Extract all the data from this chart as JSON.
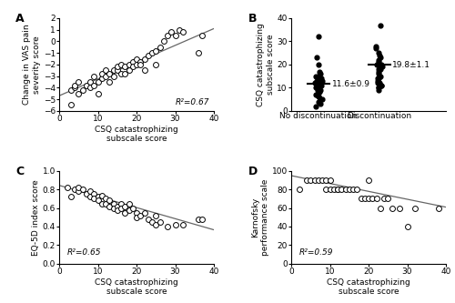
{
  "panel_A": {
    "x": [
      3,
      3,
      4,
      4,
      5,
      5,
      6,
      7,
      8,
      8,
      9,
      9,
      10,
      10,
      11,
      11,
      12,
      12,
      13,
      13,
      14,
      14,
      15,
      15,
      16,
      16,
      17,
      17,
      18,
      18,
      19,
      19,
      20,
      20,
      21,
      21,
      22,
      22,
      23,
      24,
      25,
      25,
      26,
      27,
      28,
      29,
      30,
      31,
      32,
      36,
      37
    ],
    "y": [
      -5.5,
      -4.2,
      -4.0,
      -3.8,
      -4.5,
      -3.5,
      -4.2,
      -3.8,
      -4.0,
      -3.5,
      -3.8,
      -3.0,
      -3.5,
      -4.5,
      -3.2,
      -2.8,
      -3.0,
      -2.5,
      -2.8,
      -3.5,
      -2.5,
      -3.0,
      -2.5,
      -2.2,
      -2.8,
      -2.0,
      -2.2,
      -2.8,
      -2.0,
      -2.5,
      -1.8,
      -2.2,
      -2.0,
      -1.5,
      -1.8,
      -2.0,
      -1.5,
      -2.5,
      -1.2,
      -1.0,
      -0.8,
      -2.0,
      -0.5,
      0.0,
      0.5,
      0.8,
      0.5,
      1.0,
      0.8,
      -1.0,
      0.5
    ],
    "xlabel": "CSQ catastrophizing\nsubscale score",
    "ylabel": "Change in VAS pain\nseverity score",
    "r2": "R²=0.67",
    "xlim": [
      0,
      40
    ],
    "ylim": [
      -6,
      2
    ],
    "yticks": [
      -6,
      -5,
      -4,
      -3,
      -2,
      -1,
      0,
      1,
      2
    ],
    "xticks": [
      0,
      10,
      20,
      30,
      40
    ],
    "slope": 0.145,
    "intercept": -4.7,
    "label": "A"
  },
  "panel_B": {
    "no_disc": [
      2,
      3,
      4,
      5,
      5,
      6,
      6,
      7,
      7,
      8,
      8,
      9,
      9,
      10,
      10,
      11,
      11,
      11,
      12,
      12,
      12,
      13,
      13,
      14,
      14,
      15,
      15,
      16,
      17,
      20,
      23,
      32
    ],
    "disc": [
      9,
      10,
      10,
      11,
      11,
      12,
      12,
      13,
      14,
      14,
      15,
      16,
      17,
      18,
      18,
      19,
      20,
      20,
      21,
      22,
      23,
      24,
      25,
      27,
      28,
      37
    ],
    "mean_no_disc": 11.6,
    "sem_no_disc": 0.9,
    "mean_disc": 19.8,
    "sem_disc": 1.1,
    "label_no_disc": "11.6±0.9",
    "label_disc": "19.8±1.1",
    "xlabel_no_disc": "No discontinuation",
    "xlabel_disc": "Discontinuation",
    "ylabel": "CSQ catastrophizing\nsubscale score",
    "ylim": [
      0,
      40
    ],
    "yticks": [
      0,
      10,
      20,
      30,
      40
    ],
    "label": "B"
  },
  "panel_C": {
    "x": [
      2,
      3,
      4,
      5,
      5,
      6,
      7,
      8,
      8,
      9,
      9,
      10,
      10,
      11,
      11,
      12,
      12,
      13,
      13,
      14,
      14,
      15,
      15,
      16,
      16,
      17,
      17,
      18,
      18,
      19,
      20,
      20,
      21,
      22,
      23,
      24,
      25,
      25,
      26,
      28,
      30,
      32,
      36,
      37
    ],
    "y": [
      0.82,
      0.72,
      0.8,
      0.78,
      0.82,
      0.8,
      0.75,
      0.78,
      0.72,
      0.75,
      0.7,
      0.72,
      0.68,
      0.73,
      0.65,
      0.7,
      0.65,
      0.68,
      0.62,
      0.65,
      0.6,
      0.62,
      0.58,
      0.65,
      0.6,
      0.62,
      0.55,
      0.58,
      0.65,
      0.6,
      0.55,
      0.5,
      0.52,
      0.55,
      0.48,
      0.45,
      0.52,
      0.42,
      0.45,
      0.4,
      0.42,
      0.42,
      0.48,
      0.48
    ],
    "xlabel": "CSQ catastrophizing\nsubscale score",
    "ylabel": "EQ-5D index score",
    "r2": "R²=0.65",
    "xlim": [
      0,
      40
    ],
    "ylim": [
      0,
      1
    ],
    "yticks": [
      0,
      0.2,
      0.4,
      0.6,
      0.8,
      1.0
    ],
    "xticks": [
      0,
      10,
      20,
      30,
      40
    ],
    "slope": -0.012,
    "intercept": 0.845,
    "label": "C"
  },
  "panel_D": {
    "x": [
      2,
      4,
      5,
      6,
      7,
      8,
      9,
      9,
      10,
      10,
      11,
      12,
      12,
      13,
      14,
      15,
      16,
      17,
      18,
      19,
      20,
      20,
      21,
      22,
      23,
      24,
      25,
      26,
      28,
      30,
      32,
      38
    ],
    "y": [
      80,
      90,
      90,
      90,
      90,
      90,
      90,
      80,
      90,
      80,
      80,
      80,
      80,
      80,
      80,
      80,
      80,
      80,
      70,
      70,
      70,
      90,
      70,
      70,
      60,
      70,
      70,
      60,
      60,
      40,
      60,
      60
    ],
    "xlabel": "CSQ catastrophizing\nsubscale score",
    "ylabel": "Karnofsky\nperformance scale",
    "r2": "R²=0.59",
    "xlim": [
      0,
      40
    ],
    "ylim": [
      0,
      100
    ],
    "yticks": [
      0,
      20,
      40,
      60,
      80,
      100
    ],
    "xticks": [
      0,
      10,
      20,
      30,
      40
    ],
    "slope": -0.85,
    "intercept": 95,
    "label": "D"
  },
  "marker_size": 18,
  "marker_color": "white",
  "marker_edgecolor": "black",
  "marker_edgewidth": 0.7,
  "line_color": "#666666",
  "font_size": 6.5,
  "label_fontsize": 9
}
